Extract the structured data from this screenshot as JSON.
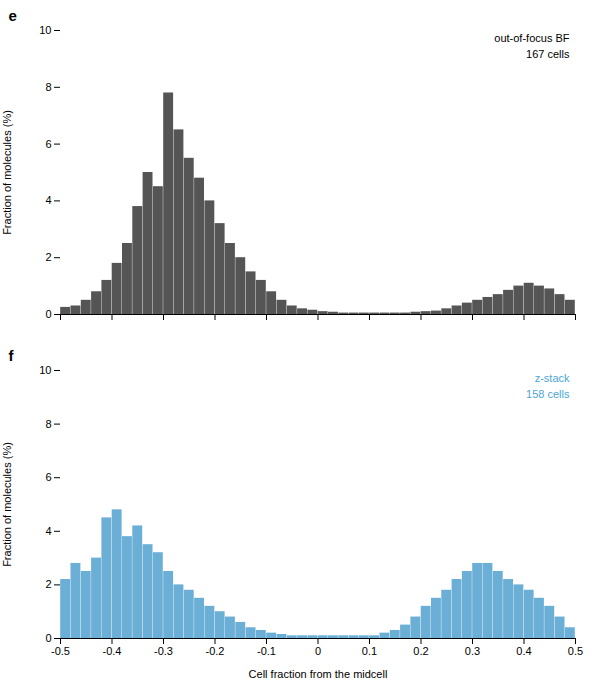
{
  "chart_data": [
    {
      "type": "histogram",
      "title": "e",
      "ylabel": "Fraction of molecules (%)",
      "bins": [
        -0.5,
        -0.48,
        -0.46,
        -0.44,
        -0.42,
        -0.4,
        -0.38,
        -0.36,
        -0.34,
        -0.32,
        -0.3,
        -0.28,
        -0.26,
        -0.24,
        -0.22,
        -0.2,
        -0.18,
        -0.16,
        -0.14,
        -0.12,
        -0.1,
        -0.08,
        -0.06,
        -0.04,
        -0.02,
        0,
        0.02,
        0.04,
        0.06,
        0.08,
        0.1,
        0.12,
        0.14,
        0.16,
        0.18,
        0.2,
        0.22,
        0.24,
        0.26,
        0.28,
        0.3,
        0.32,
        0.34,
        0.36,
        0.38,
        0.4,
        0.42,
        0.44,
        0.46,
        0.48,
        0.5
      ],
      "values": [
        0.25,
        0.3,
        0.5,
        0.8,
        1.2,
        1.8,
        2.5,
        3.8,
        5.0,
        4.5,
        7.8,
        6.5,
        5.5,
        4.8,
        4.0,
        3.2,
        2.5,
        2.0,
        1.5,
        1.2,
        0.8,
        0.5,
        0.3,
        0.2,
        0.15,
        0.1,
        0.08,
        0.05,
        0.05,
        0.05,
        0.05,
        0.05,
        0.05,
        0.05,
        0.08,
        0.1,
        0.12,
        0.2,
        0.3,
        0.4,
        0.5,
        0.6,
        0.7,
        0.85,
        1.0,
        1.1,
        1.0,
        0.9,
        0.7,
        0.5
      ],
      "color": "#555555",
      "xlim": [
        -0.5,
        0.5
      ],
      "ylim": [
        0,
        10
      ],
      "xticks": [
        -0.5,
        -0.4,
        -0.3,
        -0.2,
        -0.1,
        0,
        0.1,
        0.2,
        0.3,
        0.4,
        0.5
      ],
      "yticks": [
        0,
        2,
        4,
        6,
        8,
        10
      ],
      "tick_labels": "y",
      "grid": false,
      "annotations": [
        {
          "text": "out-of-focus BF",
          "color": "#000000"
        },
        {
          "text": "167 cells",
          "color": "#000000"
        }
      ]
    },
    {
      "type": "histogram",
      "title": "f",
      "xlabel": "Cell fraction from the midcell",
      "ylabel": "Fraction of molecules (%)",
      "bins": [
        -0.5,
        -0.48,
        -0.46,
        -0.44,
        -0.42,
        -0.4,
        -0.38,
        -0.36,
        -0.34,
        -0.32,
        -0.3,
        -0.28,
        -0.26,
        -0.24,
        -0.22,
        -0.2,
        -0.18,
        -0.16,
        -0.14,
        -0.12,
        -0.1,
        -0.08,
        -0.06,
        -0.04,
        -0.02,
        0,
        0.02,
        0.04,
        0.06,
        0.08,
        0.1,
        0.12,
        0.14,
        0.16,
        0.18,
        0.2,
        0.22,
        0.24,
        0.26,
        0.28,
        0.3,
        0.32,
        0.34,
        0.36,
        0.38,
        0.4,
        0.42,
        0.44,
        0.46,
        0.48,
        0.5
      ],
      "values": [
        2.2,
        2.8,
        2.5,
        3.0,
        4.5,
        4.8,
        3.8,
        4.2,
        3.5,
        3.2,
        2.5,
        2.0,
        1.8,
        1.5,
        1.2,
        1.0,
        0.8,
        0.6,
        0.4,
        0.3,
        0.2,
        0.15,
        0.1,
        0.1,
        0.1,
        0.1,
        0.1,
        0.1,
        0.1,
        0.1,
        0.1,
        0.2,
        0.3,
        0.5,
        0.8,
        1.2,
        1.5,
        1.8,
        2.2,
        2.5,
        2.8,
        2.8,
        2.5,
        2.2,
        2.0,
        1.8,
        1.5,
        1.2,
        0.8,
        0.4
      ],
      "color": "#6baed6",
      "xlim": [
        -0.5,
        0.5
      ],
      "ylim": [
        0,
        10
      ],
      "xticks": [
        -0.5,
        -0.4,
        -0.3,
        -0.2,
        -0.1,
        0,
        0.1,
        0.2,
        0.3,
        0.4,
        0.5
      ],
      "yticks": [
        0,
        2,
        4,
        6,
        8,
        10
      ],
      "grid": false,
      "annotations": [
        {
          "text": "z-stack",
          "color": "#4da6d7"
        },
        {
          "text": "158 cells",
          "color": "#4da6d7"
        }
      ]
    }
  ]
}
